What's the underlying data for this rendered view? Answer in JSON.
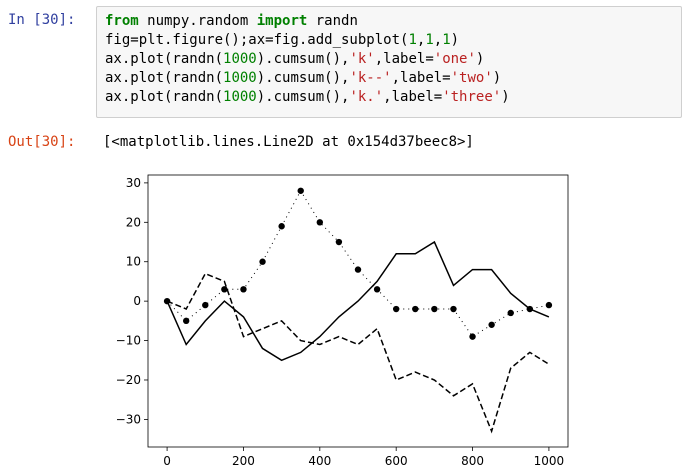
{
  "cell_in": {
    "prompt": "In  [30]:",
    "code": [
      [
        {
          "t": "from",
          "c": "kw"
        },
        {
          "t": " numpy.random ",
          "c": ""
        },
        {
          "t": "import",
          "c": "kw"
        },
        {
          "t": " randn",
          "c": ""
        }
      ],
      [
        {
          "t": "fig=plt.figure();ax=fig.add_subplot(",
          "c": ""
        },
        {
          "t": "1",
          "c": "num"
        },
        {
          "t": ",",
          "c": ""
        },
        {
          "t": "1",
          "c": "num"
        },
        {
          "t": ",",
          "c": ""
        },
        {
          "t": "1",
          "c": "num"
        },
        {
          "t": ")",
          "c": ""
        }
      ],
      [
        {
          "t": "ax.plot(randn(",
          "c": ""
        },
        {
          "t": "1000",
          "c": "num"
        },
        {
          "t": ").cumsum(),",
          "c": ""
        },
        {
          "t": "'k'",
          "c": "str"
        },
        {
          "t": ",label=",
          "c": ""
        },
        {
          "t": "'one'",
          "c": "str"
        },
        {
          "t": ")",
          "c": ""
        }
      ],
      [
        {
          "t": "ax.plot(randn(",
          "c": ""
        },
        {
          "t": "1000",
          "c": "num"
        },
        {
          "t": ").cumsum(),",
          "c": ""
        },
        {
          "t": "'k--'",
          "c": "str"
        },
        {
          "t": ",label=",
          "c": ""
        },
        {
          "t": "'two'",
          "c": "str"
        },
        {
          "t": ")",
          "c": ""
        }
      ],
      [
        {
          "t": "ax.plot(randn(",
          "c": ""
        },
        {
          "t": "1000",
          "c": "num"
        },
        {
          "t": ").cumsum(),",
          "c": ""
        },
        {
          "t": "'k.'",
          "c": "str"
        },
        {
          "t": ",label=",
          "c": ""
        },
        {
          "t": "'three'",
          "c": "str"
        },
        {
          "t": ")",
          "c": ""
        }
      ]
    ]
  },
  "cell_out": {
    "prompt": "Out[30]:",
    "text": "[<matplotlib.lines.Line2D at 0x154d37beec8>]"
  },
  "chart_data": {
    "type": "line",
    "title": "",
    "xlabel": "",
    "ylabel": "",
    "xlim": [
      -50,
      1050
    ],
    "ylim": [
      -37,
      32
    ],
    "xticks": [
      0,
      200,
      400,
      600,
      800,
      1000
    ],
    "yticks": [
      30,
      20,
      10,
      0,
      -10,
      -20,
      -30
    ],
    "grid": false,
    "legend": "none",
    "x": [
      0,
      50,
      100,
      150,
      200,
      250,
      300,
      350,
      400,
      450,
      500,
      550,
      600,
      650,
      700,
      750,
      800,
      850,
      900,
      950,
      1000
    ],
    "series": [
      {
        "style": "solid",
        "values": [
          0,
          -11,
          -5,
          0,
          -4,
          -12,
          -15,
          -13,
          -9,
          -4,
          0,
          5,
          12,
          12,
          15,
          4,
          8,
          8,
          2,
          -2,
          -4
        ]
      },
      {
        "style": "dashed",
        "values": [
          0,
          -2,
          7,
          5,
          -9,
          -7,
          -5,
          -10,
          -11,
          -9,
          -11,
          -7,
          -20,
          -18,
          -20,
          -24,
          -21,
          -33,
          -17,
          -13,
          -16
        ]
      },
      {
        "style": "dotted",
        "values": [
          0,
          -5,
          -1,
          3,
          3,
          10,
          19,
          28,
          20,
          15,
          8,
          3,
          -2,
          -2,
          -2,
          -2,
          -9,
          -6,
          -3,
          -2,
          -1
        ]
      }
    ]
  }
}
